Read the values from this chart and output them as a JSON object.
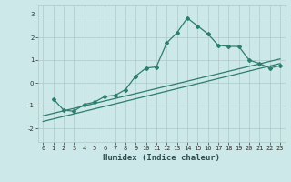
{
  "xlabel": "Humidex (Indice chaleur)",
  "bg_color": "#cce8e8",
  "grid_color": "#b0c8c8",
  "line_color": "#2e7d6e",
  "xlim": [
    -0.5,
    23.5
  ],
  "ylim": [
    -2.6,
    3.4
  ],
  "xticks": [
    0,
    1,
    2,
    3,
    4,
    5,
    6,
    7,
    8,
    9,
    10,
    11,
    12,
    13,
    14,
    15,
    16,
    17,
    18,
    19,
    20,
    21,
    22,
    23
  ],
  "yticks": [
    -2,
    -1,
    0,
    1,
    2,
    3
  ],
  "line1_x": [
    1,
    2,
    3,
    4,
    5,
    6,
    7,
    8,
    9,
    10,
    11,
    12,
    13,
    14,
    15,
    16,
    17,
    18,
    19,
    20,
    21,
    22,
    23
  ],
  "line1_y": [
    -0.7,
    -1.2,
    -1.25,
    -0.95,
    -0.85,
    -0.6,
    -0.55,
    -0.3,
    0.3,
    0.65,
    0.7,
    1.75,
    2.2,
    2.85,
    2.5,
    2.15,
    1.65,
    1.6,
    1.6,
    1.0,
    0.85,
    0.65,
    0.75
  ],
  "line2_x": [
    0,
    23
  ],
  "line2_y": [
    -1.7,
    0.85
  ],
  "line3_x": [
    0,
    23
  ],
  "line3_y": [
    -1.45,
    1.05
  ],
  "xlabel_fontsize": 6.5,
  "tick_fontsize": 5.0
}
